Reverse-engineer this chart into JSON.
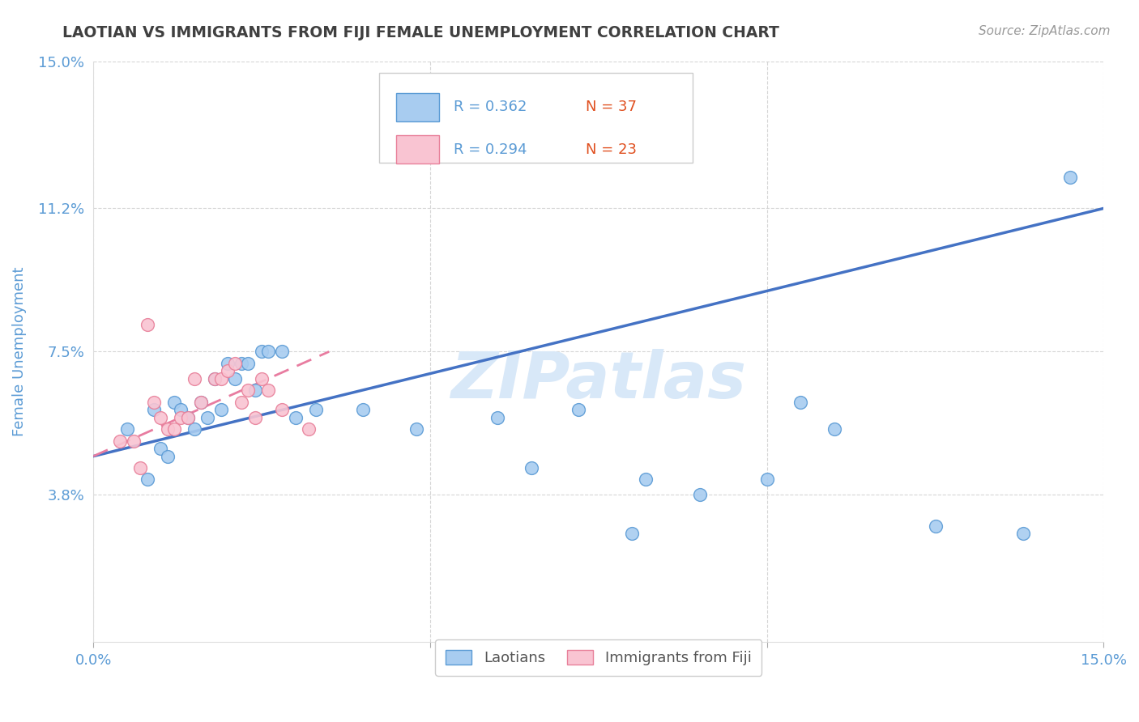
{
  "title": "LAOTIAN VS IMMIGRANTS FROM FIJI FEMALE UNEMPLOYMENT CORRELATION CHART",
  "source_text": "Source: ZipAtlas.com",
  "ylabel": "Female Unemployment",
  "xlim": [
    0.0,
    0.15
  ],
  "ylim": [
    0.0,
    0.15
  ],
  "xtick_positions": [
    0.0,
    0.05,
    0.1,
    0.15
  ],
  "xtick_labels": [
    "0.0%",
    "",
    "",
    "15.0%"
  ],
  "ytick_positions": [
    0.038,
    0.075,
    0.112,
    0.15
  ],
  "ytick_labels": [
    "3.8%",
    "7.5%",
    "11.2%",
    "15.0%"
  ],
  "legend_r1": "R = 0.362",
  "legend_n1": "N = 37",
  "legend_r2": "R = 0.294",
  "legend_n2": "N = 23",
  "color_blue_fill": "#A8CCF0",
  "color_blue_edge": "#5B9BD5",
  "color_blue_line": "#4472C4",
  "color_pink_fill": "#F9C4D2",
  "color_pink_edge": "#E8809A",
  "color_pink_line": "#E87CA0",
  "color_title": "#404040",
  "color_axis_label": "#5B9BD5",
  "color_tick_label": "#5B9BD5",
  "color_legend_r": "#5B9BD5",
  "color_legend_n": "#E05020",
  "watermark_text": "ZIPatlas",
  "watermark_color": "#D8E8F8",
  "background_color": "#FFFFFF",
  "grid_color": "#CCCCCC",
  "blue_x": [
    0.005,
    0.008,
    0.009,
    0.01,
    0.011,
    0.012,
    0.013,
    0.014,
    0.015,
    0.016,
    0.017,
    0.018,
    0.019,
    0.02,
    0.021,
    0.022,
    0.023,
    0.024,
    0.025,
    0.026,
    0.028,
    0.03,
    0.033,
    0.04,
    0.048,
    0.06,
    0.065,
    0.072,
    0.08,
    0.082,
    0.09,
    0.1,
    0.105,
    0.11,
    0.125,
    0.138,
    0.145
  ],
  "blue_y": [
    0.055,
    0.042,
    0.06,
    0.05,
    0.048,
    0.062,
    0.06,
    0.058,
    0.055,
    0.062,
    0.058,
    0.068,
    0.06,
    0.072,
    0.068,
    0.072,
    0.072,
    0.065,
    0.075,
    0.075,
    0.075,
    0.058,
    0.06,
    0.06,
    0.055,
    0.058,
    0.045,
    0.06,
    0.028,
    0.042,
    0.038,
    0.042,
    0.062,
    0.055,
    0.03,
    0.028,
    0.12
  ],
  "pink_x": [
    0.004,
    0.006,
    0.007,
    0.008,
    0.009,
    0.01,
    0.011,
    0.012,
    0.013,
    0.014,
    0.015,
    0.016,
    0.018,
    0.019,
    0.02,
    0.021,
    0.022,
    0.023,
    0.024,
    0.025,
    0.026,
    0.028,
    0.032
  ],
  "pink_y": [
    0.052,
    0.052,
    0.045,
    0.082,
    0.062,
    0.058,
    0.055,
    0.055,
    0.058,
    0.058,
    0.068,
    0.062,
    0.068,
    0.068,
    0.07,
    0.072,
    0.062,
    0.065,
    0.058,
    0.068,
    0.065,
    0.06,
    0.055
  ],
  "blue_trend_x": [
    0.0,
    0.15
  ],
  "blue_trend_y": [
    0.048,
    0.112
  ],
  "pink_trend_x": [
    0.0,
    0.035
  ],
  "pink_trend_y": [
    0.048,
    0.075
  ]
}
